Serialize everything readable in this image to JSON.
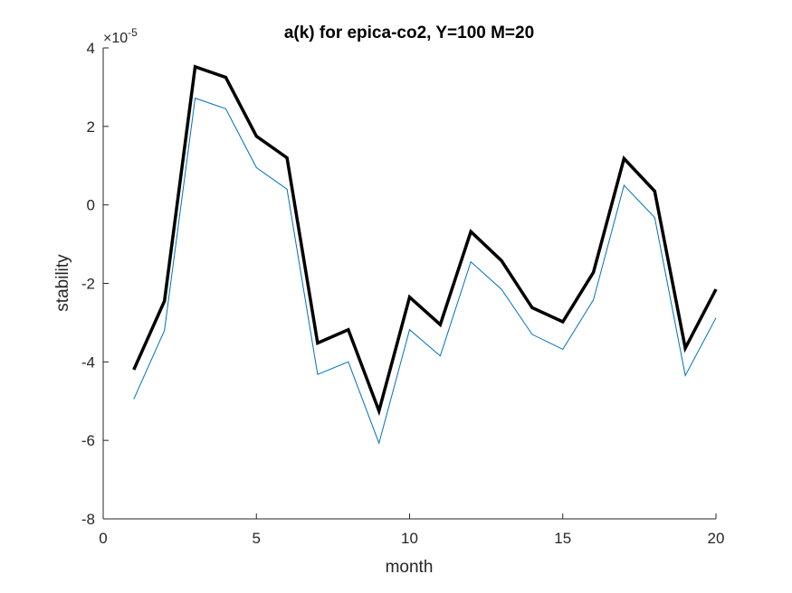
{
  "chart_data": {
    "type": "line",
    "title": "a(k) for epica-co2, Y=100 M=20",
    "xlabel": "month",
    "ylabel": "stability",
    "y_exponent_label": "×10",
    "y_exponent_power": "-5",
    "xlim": [
      0,
      20
    ],
    "ylim": [
      -8,
      4
    ],
    "y_scale_factor": 1e-05,
    "x_ticks": [
      0,
      5,
      10,
      15,
      20
    ],
    "y_ticks": [
      -8,
      -6,
      -4,
      -2,
      0,
      2,
      4
    ],
    "x_tick_labels": [
      "0",
      "5",
      "10",
      "15",
      "20"
    ],
    "y_tick_labels": [
      "-8",
      "-6",
      "-4",
      "-2",
      "0",
      "2",
      "4"
    ],
    "grid": false,
    "x": [
      1,
      2,
      3,
      4,
      5,
      6,
      7,
      8,
      9,
      10,
      11,
      12,
      13,
      14,
      15,
      16,
      17,
      18,
      19,
      20
    ],
    "series": [
      {
        "color": "#000000",
        "style": "thick",
        "values": [
          -4.2,
          -2.45,
          3.52,
          3.25,
          1.75,
          1.2,
          -3.52,
          -3.18,
          -5.25,
          -2.35,
          -3.05,
          -0.68,
          -1.42,
          -2.62,
          -2.98,
          -1.72,
          1.18,
          0.35,
          -3.65,
          -2.15
        ]
      },
      {
        "color": "#0072BD",
        "style": "thin",
        "values": [
          -4.95,
          -3.2,
          2.72,
          2.45,
          0.95,
          0.4,
          -4.32,
          -4.0,
          -6.07,
          -3.18,
          -3.85,
          -1.45,
          -2.15,
          -3.3,
          -3.68,
          -2.42,
          0.5,
          -0.32,
          -4.35,
          -2.88
        ]
      }
    ]
  }
}
